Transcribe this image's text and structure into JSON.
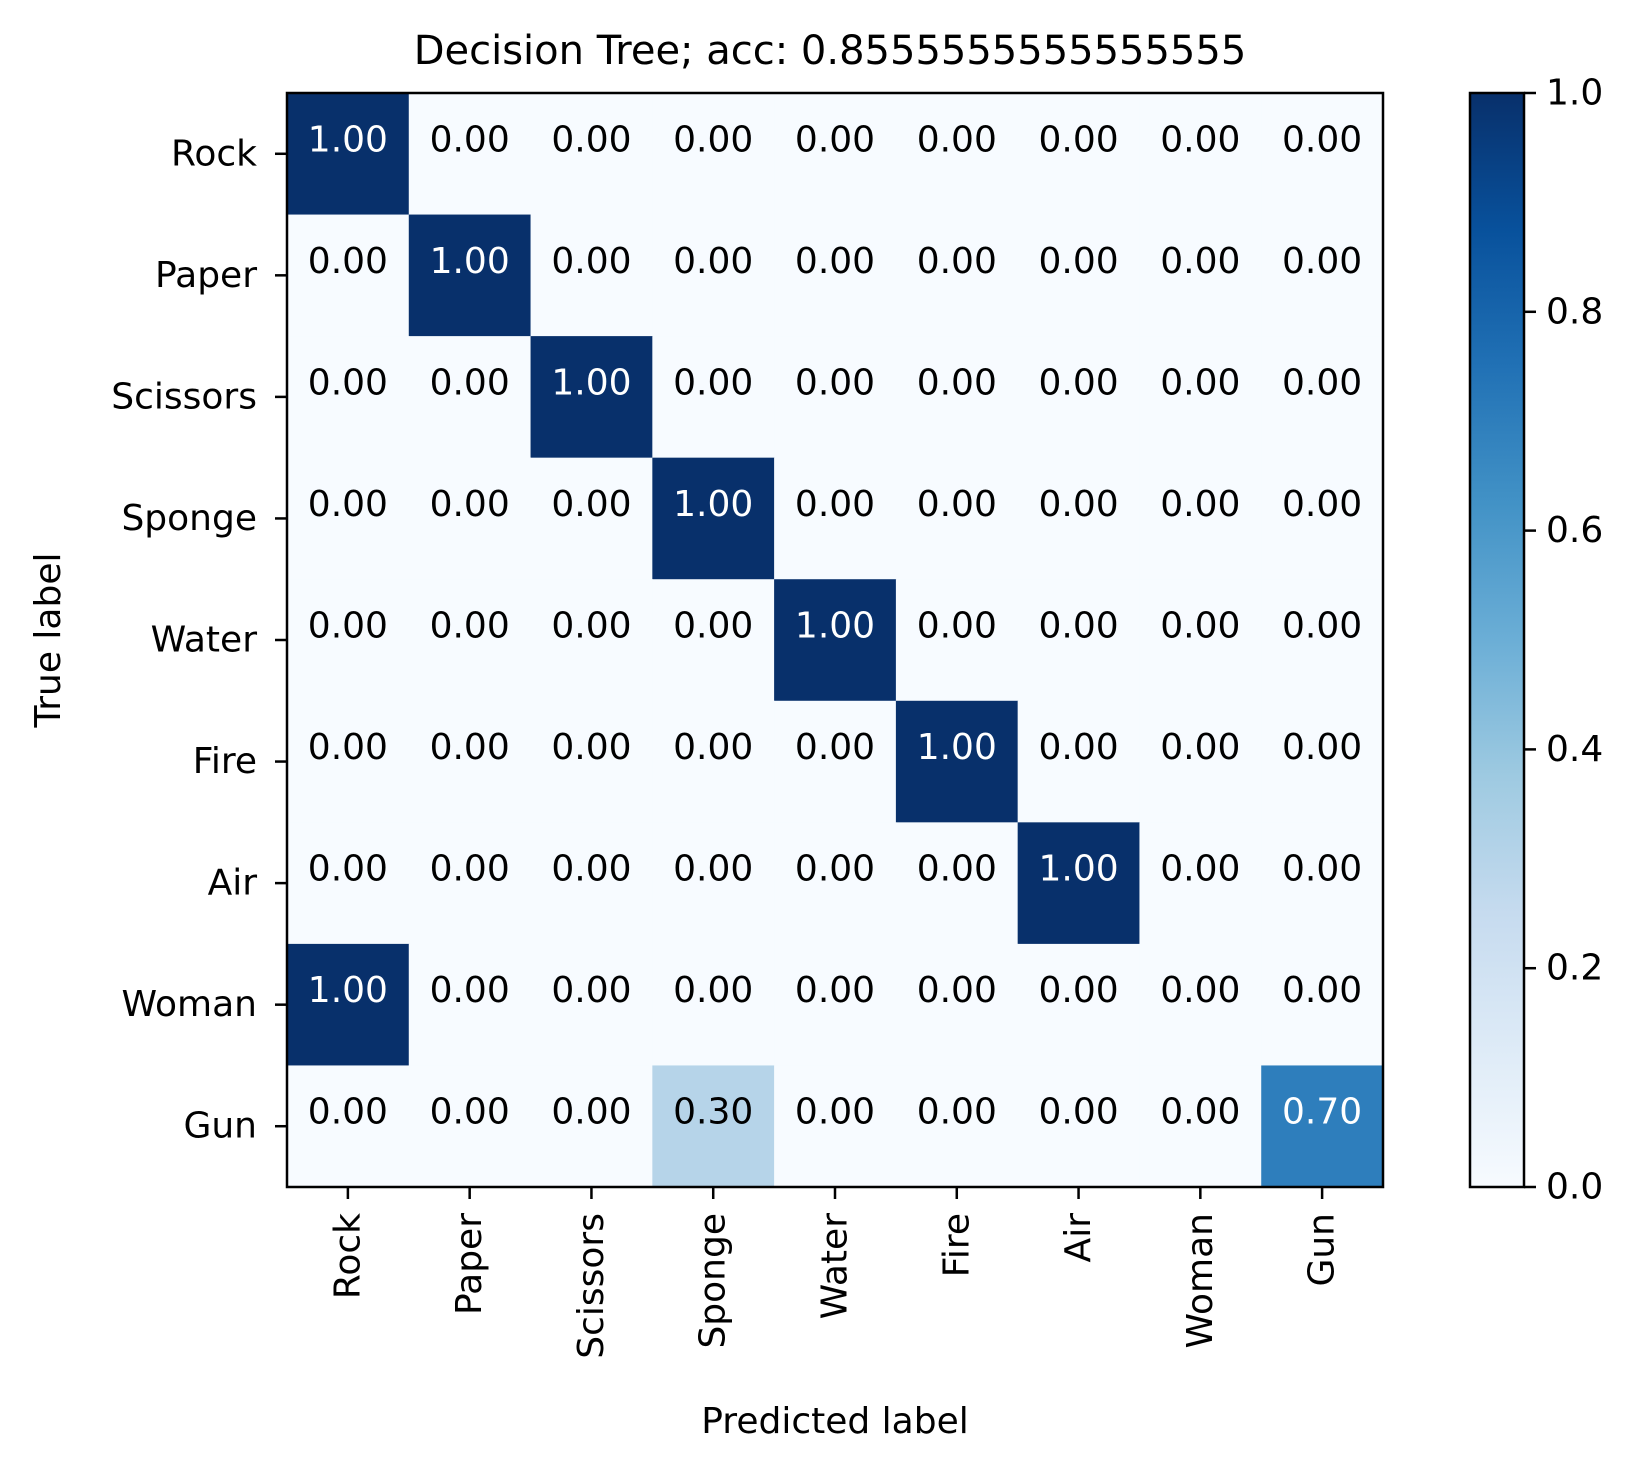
{
  "chart_data": {
    "type": "heatmap",
    "title": "Decision Tree; acc: 0.8555555555555555",
    "xlabel": "Predicted label",
    "ylabel": "True label",
    "x_categories": [
      "Rock",
      "Paper",
      "Scissors",
      "Sponge",
      "Water",
      "Fire",
      "Air",
      "Woman",
      "Gun"
    ],
    "y_categories": [
      "Rock",
      "Paper",
      "Scissors",
      "Sponge",
      "Water",
      "Fire",
      "Air",
      "Woman",
      "Gun"
    ],
    "matrix": [
      [
        1.0,
        0.0,
        0.0,
        0.0,
        0.0,
        0.0,
        0.0,
        0.0,
        0.0
      ],
      [
        0.0,
        1.0,
        0.0,
        0.0,
        0.0,
        0.0,
        0.0,
        0.0,
        0.0
      ],
      [
        0.0,
        0.0,
        1.0,
        0.0,
        0.0,
        0.0,
        0.0,
        0.0,
        0.0
      ],
      [
        0.0,
        0.0,
        0.0,
        1.0,
        0.0,
        0.0,
        0.0,
        0.0,
        0.0
      ],
      [
        0.0,
        0.0,
        0.0,
        0.0,
        1.0,
        0.0,
        0.0,
        0.0,
        0.0
      ],
      [
        0.0,
        0.0,
        0.0,
        0.0,
        0.0,
        1.0,
        0.0,
        0.0,
        0.0
      ],
      [
        0.0,
        0.0,
        0.0,
        0.0,
        0.0,
        0.0,
        1.0,
        0.0,
        0.0
      ],
      [
        1.0,
        0.0,
        0.0,
        0.0,
        0.0,
        0.0,
        0.0,
        0.0,
        0.0
      ],
      [
        0.0,
        0.0,
        0.0,
        0.3,
        0.0,
        0.0,
        0.0,
        0.0,
        0.7
      ]
    ],
    "value_format": "0.00",
    "colormap": "Blues",
    "colorbar": {
      "range": [
        0.0,
        1.0
      ],
      "ticks": [
        "0.0",
        "0.2",
        "0.4",
        "0.6",
        "0.8",
        "1.0"
      ]
    },
    "grid": false
  }
}
